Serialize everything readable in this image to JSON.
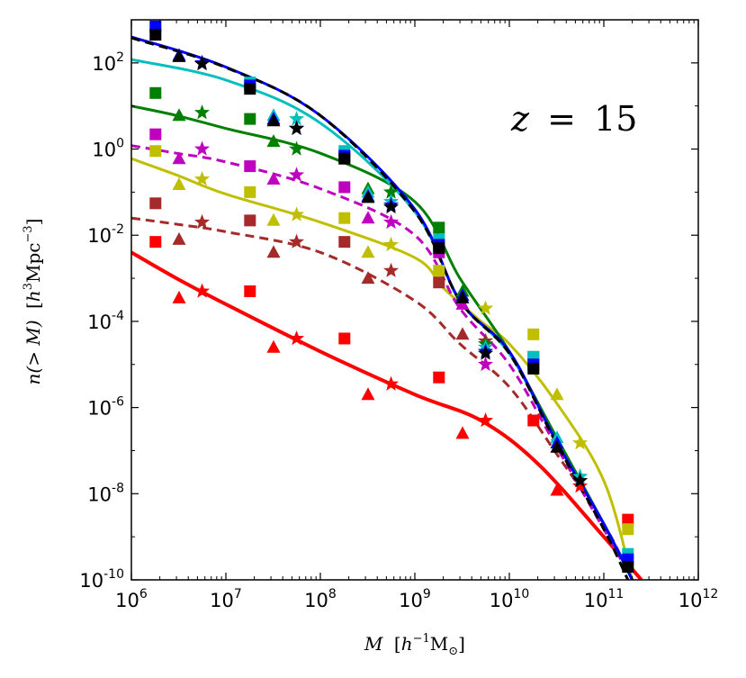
{
  "chart_data": {
    "type": "line",
    "title": "",
    "annotation": {
      "text": "z = 15",
      "var": "z",
      "op": "=",
      "val": "15"
    },
    "xlabel": {
      "var": "M",
      "unit_base": "h",
      "unit_exp": "−1",
      "unit_rest": "M",
      "unit_sub": "⊙"
    },
    "ylabel": {
      "var": "n(> M)",
      "unit_base": "h",
      "unit_exp": "3",
      "unit_mid": "Mpc",
      "unit_exp2": "−3"
    },
    "xscale": "log",
    "yscale": "log",
    "xlim": [
      1000000,
      1000000000000
    ],
    "ylim": [
      1e-10,
      1000
    ],
    "x_ticks": [
      {
        "value": 1000000,
        "base": "10",
        "exp": "6"
      },
      {
        "value": 10000000,
        "base": "10",
        "exp": "7"
      },
      {
        "value": 100000000,
        "base": "10",
        "exp": "8"
      },
      {
        "value": 1000000000,
        "base": "10",
        "exp": "9"
      },
      {
        "value": 10000000000,
        "base": "10",
        "exp": "10"
      },
      {
        "value": 100000000000,
        "base": "10",
        "exp": "11"
      },
      {
        "value": 1000000000000,
        "base": "10",
        "exp": "12"
      }
    ],
    "y_ticks": [
      {
        "value": 1e-10,
        "base": "10",
        "exp": "-10"
      },
      {
        "value": 1e-08,
        "base": "10",
        "exp": "-8"
      },
      {
        "value": 1e-06,
        "base": "10",
        "exp": "-6"
      },
      {
        "value": 0.0001,
        "base": "10",
        "exp": "-4"
      },
      {
        "value": 0.01,
        "base": "10",
        "exp": "-2"
      },
      {
        "value": 1,
        "base": "10",
        "exp": "0"
      },
      {
        "value": 100,
        "base": "10",
        "exp": "2"
      }
    ],
    "series": [
      {
        "name": "blue",
        "color": "#0000ff",
        "style": "solid",
        "line": [
          [
            1000000,
            400
          ],
          [
            10000000,
            80
          ],
          [
            100000000,
            6
          ],
          [
            1000000000,
            0.04
          ],
          [
            3000000000,
            0.0003
          ],
          [
            10000000000,
            2e-05
          ],
          [
            30000000000,
            2e-07
          ],
          [
            100000000000,
            2e-09
          ],
          [
            200000000000,
            1e-10
          ]
        ],
        "squares": [
          [
            1800000,
            700
          ],
          [
            18000000,
            30
          ],
          [
            180000000,
            0.7
          ],
          [
            1800000000,
            0.006
          ],
          [
            18000000000,
            1e-05
          ],
          [
            180000000000,
            3e-10
          ]
        ],
        "triangles": [
          [
            3200000,
            150
          ],
          [
            32000000,
            5
          ],
          [
            320000000,
            0.08
          ],
          [
            3200000000,
            0.0004
          ],
          [
            32000000000,
            1.5e-07
          ]
        ],
        "stars": [
          [
            5600000,
            100
          ],
          [
            56000000,
            3
          ],
          [
            560000000,
            0.05
          ],
          [
            5600000000,
            2e-05
          ],
          [
            56000000000,
            2e-08
          ]
        ]
      },
      {
        "name": "black",
        "color": "#000000",
        "style": "dashed",
        "line": [
          [
            1000000,
            380
          ],
          [
            10000000,
            78
          ],
          [
            100000000,
            6
          ],
          [
            1000000000,
            0.035
          ],
          [
            3000000000,
            0.0003
          ],
          [
            10000000000,
            1.8e-05
          ],
          [
            30000000000,
            1.8e-07
          ],
          [
            100000000000,
            1.5e-09
          ],
          [
            180000000000,
            1e-10
          ]
        ],
        "squares": [
          [
            1800000,
            450
          ],
          [
            18000000,
            25
          ],
          [
            180000000,
            0.6
          ],
          [
            1800000000,
            0.005
          ],
          [
            18000000000,
            8e-06
          ],
          [
            180000000000,
            2e-10
          ]
        ],
        "triangles": [
          [
            3200000,
            140
          ],
          [
            32000000,
            4.5
          ],
          [
            320000000,
            0.075
          ],
          [
            3200000000,
            0.00035
          ],
          [
            32000000000,
            1.2e-07
          ]
        ],
        "stars": [
          [
            5600000,
            95
          ],
          [
            56000000,
            3
          ],
          [
            560000000,
            0.045
          ],
          [
            5600000000,
            1.8e-05
          ],
          [
            56000000000,
            2e-08
          ]
        ]
      },
      {
        "name": "cyan",
        "color": "#00bfbf",
        "style": "solid",
        "line": [
          [
            1000000,
            120
          ],
          [
            10000000,
            40
          ],
          [
            100000000,
            4
          ],
          [
            1000000000,
            0.035
          ],
          [
            3000000000,
            0.0003
          ],
          [
            10000000000,
            1.8e-05
          ],
          [
            30000000000,
            2e-07
          ],
          [
            100000000000,
            2e-09
          ],
          [
            200000000000,
            1e-10
          ]
        ],
        "squares": [
          [
            18000000,
            35
          ],
          [
            180000000,
            0.9
          ],
          [
            1800000000,
            0.008
          ],
          [
            18000000000,
            1.5e-05
          ],
          [
            180000000000,
            4e-10
          ]
        ],
        "triangles": [
          [
            32000000,
            6
          ],
          [
            320000000,
            0.1
          ],
          [
            3200000000,
            0.0004
          ],
          [
            32000000000,
            2e-07
          ]
        ],
        "stars": [
          [
            56000000,
            5
          ],
          [
            560000000,
            0.06
          ],
          [
            5600000000,
            2.5e-05
          ],
          [
            56000000000,
            2.5e-08
          ]
        ]
      },
      {
        "name": "green",
        "color": "#007f00",
        "style": "solid",
        "line": [
          [
            1000000,
            10
          ],
          [
            3000000,
            6
          ],
          [
            10000000,
            3
          ],
          [
            100000000,
            0.8
          ],
          [
            1000000000,
            0.06
          ],
          [
            3000000000,
            0.001
          ],
          [
            10000000000,
            2e-05
          ],
          [
            30000000000,
            2.5e-07
          ],
          [
            100000000000,
            2e-09
          ],
          [
            200000000000,
            1e-10
          ]
        ],
        "squares": [
          [
            1800000,
            20
          ],
          [
            18000000,
            5
          ],
          [
            180000000,
            0.6
          ],
          [
            1800000000,
            0.015
          ],
          [
            18000000000,
            1.5e-05
          ]
        ],
        "triangles": [
          [
            3200000,
            6
          ],
          [
            32000000,
            1.5
          ],
          [
            320000000,
            0.12
          ],
          [
            3200000000,
            0.0005
          ],
          [
            32000000000,
            1.5e-07
          ]
        ],
        "stars": [
          [
            5600000,
            7
          ],
          [
            56000000,
            1
          ],
          [
            560000000,
            0.1
          ],
          [
            5600000000,
            3e-05
          ],
          [
            56000000000,
            2.5e-08
          ]
        ]
      },
      {
        "name": "magenta",
        "color": "#bf00bf",
        "style": "dashed",
        "line": [
          [
            1000000,
            1.2
          ],
          [
            3000000,
            0.8
          ],
          [
            10000000,
            0.5
          ],
          [
            100000000,
            0.12
          ],
          [
            1000000000,
            0.01
          ],
          [
            3000000000,
            0.0002
          ],
          [
            10000000000,
            1e-05
          ],
          [
            30000000000,
            1.5e-07
          ],
          [
            100000000000,
            1.5e-09
          ],
          [
            200000000000,
            1e-10
          ]
        ],
        "squares": [
          [
            1800000,
            2.2
          ],
          [
            18000000,
            0.4
          ],
          [
            180000000,
            0.13
          ],
          [
            1800000000,
            0.004
          ]
        ],
        "triangles": [
          [
            3200000,
            0.6
          ],
          [
            32000000,
            0.2
          ],
          [
            320000000,
            0.025
          ],
          [
            3200000000,
            0.00025
          ]
        ],
        "stars": [
          [
            5600000,
            1
          ],
          [
            56000000,
            0.25
          ],
          [
            560000000,
            0.02
          ],
          [
            5600000000,
            1e-05
          ]
        ]
      },
      {
        "name": "olive",
        "color": "#bfbf00",
        "style": "solid",
        "line": [
          [
            1000000,
            0.6
          ],
          [
            3000000,
            0.25
          ],
          [
            10000000,
            0.09
          ],
          [
            100000000,
            0.02
          ],
          [
            1000000000,
            0.003
          ],
          [
            2000000000,
            0.0006
          ],
          [
            5000000000,
            0.0001
          ],
          [
            10000000000,
            3e-05
          ],
          [
            30000000000,
            1.5e-06
          ],
          [
            100000000000,
            2e-08
          ],
          [
            200000000000,
            1e-10
          ]
        ],
        "squares": [
          [
            1800000,
            0.9
          ],
          [
            18000000,
            0.1
          ],
          [
            180000000,
            0.025
          ],
          [
            1800000000,
            0.0015
          ],
          [
            18000000000,
            5e-05
          ],
          [
            180000000000,
            1.5e-09
          ]
        ],
        "triangles": [
          [
            3200000,
            0.15
          ],
          [
            32000000,
            0.022
          ],
          [
            320000000,
            0.004
          ],
          [
            3200000000,
            0.0004
          ],
          [
            32000000000,
            2e-06
          ]
        ],
        "stars": [
          [
            5600000,
            0.2
          ],
          [
            56000000,
            0.03
          ],
          [
            560000000,
            0.006
          ],
          [
            5600000000,
            0.0002
          ],
          [
            56000000000,
            1.5e-07
          ]
        ]
      },
      {
        "name": "brown",
        "color": "#a52a2a",
        "style": "dashed",
        "line": [
          [
            1000000,
            0.025
          ],
          [
            3000000,
            0.018
          ],
          [
            10000000,
            0.012
          ],
          [
            100000000,
            0.004
          ],
          [
            1000000000,
            0.0003
          ],
          [
            3000000000,
            3e-05
          ],
          [
            10000000000,
            3e-06
          ],
          [
            30000000000,
            1e-07
          ],
          [
            100000000000,
            2e-09
          ],
          [
            200000000000,
            1e-10
          ]
        ],
        "squares": [
          [
            1800000,
            0.055
          ],
          [
            18000000,
            0.022
          ],
          [
            180000000,
            0.007
          ],
          [
            1800000000,
            0.0008
          ]
        ],
        "triangles": [
          [
            3200000,
            0.008
          ],
          [
            32000000,
            0.004
          ],
          [
            320000000,
            0.001
          ],
          [
            3200000000,
            5e-05
          ]
        ],
        "stars": [
          [
            5600000,
            0.02
          ],
          [
            56000000,
            0.007
          ],
          [
            560000000,
            0.0015
          ],
          [
            5600000000,
            3.5e-05
          ]
        ]
      },
      {
        "name": "red",
        "color": "#ff0000",
        "style": "solid",
        "line": [
          [
            1000000,
            0.004
          ],
          [
            3000000,
            0.001
          ],
          [
            10000000,
            0.00025
          ],
          [
            100000000,
            2e-05
          ],
          [
            1000000000,
            2e-06
          ],
          [
            5000000000,
            5e-07
          ],
          [
            20000000000,
            5e-08
          ],
          [
            100000000000,
            1e-09
          ],
          [
            250000000000,
            1e-10
          ]
        ],
        "squares": [
          [
            1800000,
            0.007
          ],
          [
            18000000,
            0.0005
          ],
          [
            180000000,
            4e-05
          ],
          [
            1800000000,
            5e-06
          ],
          [
            18000000000,
            5e-07
          ],
          [
            180000000000,
            2.5e-09
          ]
        ],
        "triangles": [
          [
            3200000,
            0.00035
          ],
          [
            32000000,
            2.5e-05
          ],
          [
            320000000,
            2e-06
          ],
          [
            3200000000,
            2.5e-07
          ],
          [
            32000000000,
            1.2e-08
          ]
        ],
        "stars": [
          [
            5600000,
            0.0005
          ],
          [
            56000000,
            4e-05
          ],
          [
            560000000,
            3.5e-06
          ],
          [
            5600000000,
            5e-07
          ],
          [
            56000000000,
            1.5e-08
          ]
        ]
      }
    ]
  }
}
